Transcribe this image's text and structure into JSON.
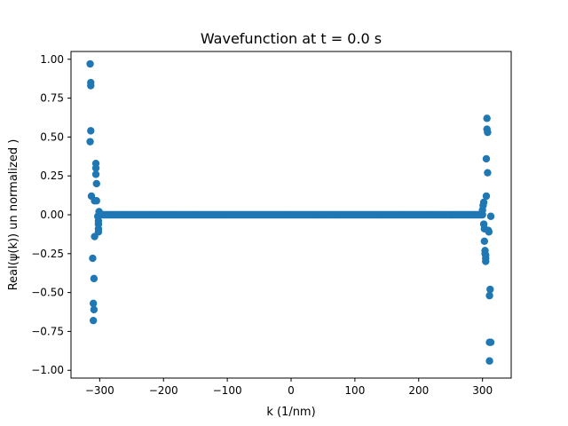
{
  "chart_data": {
    "type": "scatter",
    "title": "Wavefunction at t = 0.0 s",
    "xlabel": "k (1/nm)",
    "ylabel": "Real(ψ(k)) un normalized )",
    "xlim": [
      -345,
      345
    ],
    "ylim": [
      -1.05,
      1.05
    ],
    "x_ticks": [
      -300,
      -200,
      -100,
      0,
      100,
      200,
      300
    ],
    "x_tick_labels": [
      "−300",
      "−200",
      "−100",
      "0",
      "100",
      "200",
      "300"
    ],
    "y_ticks": [
      1.0,
      0.75,
      0.5,
      0.25,
      0.0,
      -0.25,
      -0.5,
      -0.75,
      -1.0
    ],
    "y_tick_labels": [
      "1.00",
      "0.75",
      "0.50",
      "0.25",
      "0.00",
      "−0.25",
      "−0.50",
      "−0.75",
      "−1.00"
    ],
    "grid": false,
    "legend": "none",
    "series": [
      {
        "color": "#1f77b4",
        "outer_points": [
          [
            -315,
            0.97
          ],
          [
            -314,
            0.85
          ],
          [
            -314,
            0.83
          ],
          [
            -315,
            0.47
          ],
          [
            -314,
            0.54
          ],
          [
            -313,
            0.12
          ],
          [
            -311,
            -0.28
          ],
          [
            -310,
            -0.57
          ],
          [
            -310,
            -0.68
          ],
          [
            -309,
            -0.61
          ],
          [
            -309,
            -0.41
          ],
          [
            -308,
            -0.14
          ],
          [
            -306,
            0.33
          ],
          [
            -306,
            0.3
          ],
          [
            -306,
            0.26
          ],
          [
            -305,
            0.2
          ],
          [
            -308,
            0.09
          ],
          [
            -305,
            0.09
          ],
          [
            -303,
            -0.01
          ],
          [
            -302,
            -0.04
          ],
          [
            -302,
            -0.06
          ],
          [
            -302,
            -0.09
          ],
          [
            -302,
            -0.11
          ],
          [
            -301,
            0.02
          ],
          [
            -300,
            0.01
          ],
          [
            300,
            0.03
          ],
          [
            301,
            0.06
          ],
          [
            302,
            0.08
          ],
          [
            302,
            -0.06
          ],
          [
            303,
            -0.09
          ],
          [
            303,
            -0.17
          ],
          [
            304,
            -0.23
          ],
          [
            304,
            -0.25
          ],
          [
            305,
            -0.28
          ],
          [
            305,
            -0.26
          ],
          [
            305,
            -0.3
          ],
          [
            306,
            0.36
          ],
          [
            306,
            0.12
          ],
          [
            307,
            0.62
          ],
          [
            307,
            0.55
          ],
          [
            308,
            0.53
          ],
          [
            308,
            0.27
          ],
          [
            309,
            -0.1
          ],
          [
            310,
            -0.11
          ],
          [
            311,
            -0.52
          ],
          [
            312,
            -0.48
          ],
          [
            311,
            -0.82
          ],
          [
            313,
            -0.82
          ],
          [
            311,
            -0.94
          ],
          [
            313,
            -0.01
          ]
        ],
        "flat_band": {
          "x_min": -300,
          "x_max": 300,
          "step": 2,
          "y": 0.0
        }
      }
    ]
  }
}
